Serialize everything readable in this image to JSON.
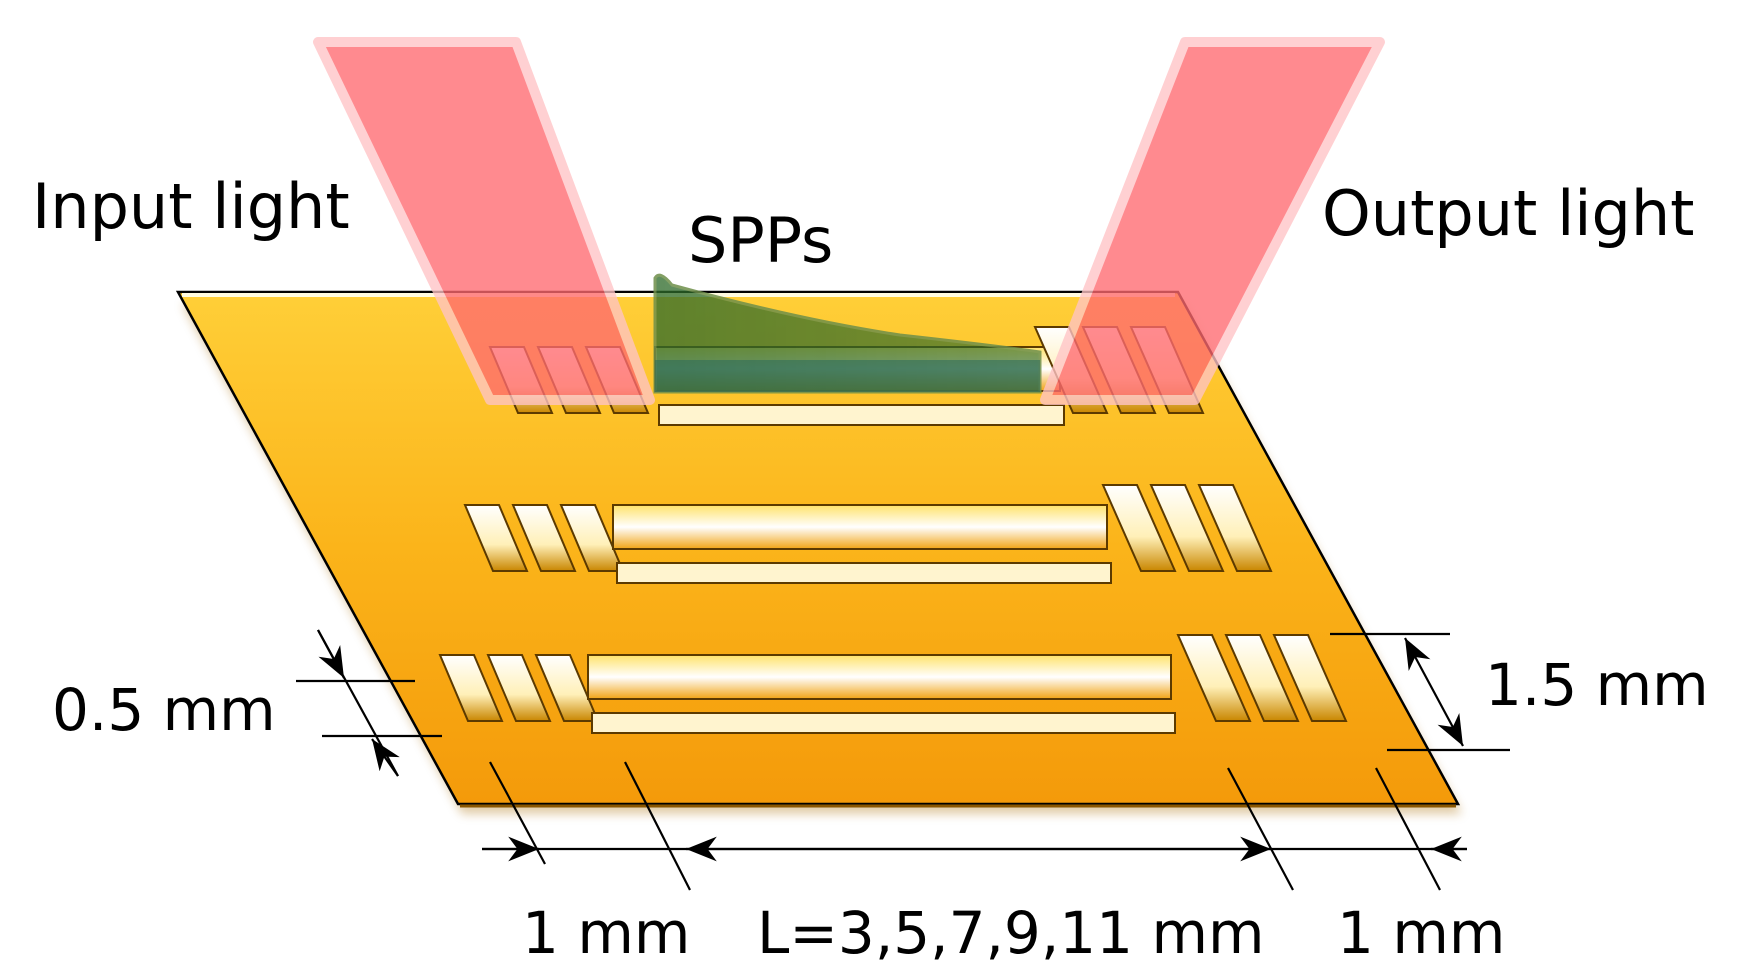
{
  "labels": {
    "input_light": "Input light",
    "output_light": "Output light",
    "spps": "SPPs",
    "thickness": "0.5 mm",
    "spacing": "1.5 mm",
    "grating_left": "1 mm",
    "grating_right": "1 mm",
    "length": "L=3,5,7,9,11 mm"
  },
  "colors": {
    "substrate": "#f8aa12",
    "substrate_light": "#ffc830",
    "beam": "#ff5b63",
    "spp": "#1e6a4a",
    "slot": "#fff6d8",
    "line": "#000000"
  }
}
